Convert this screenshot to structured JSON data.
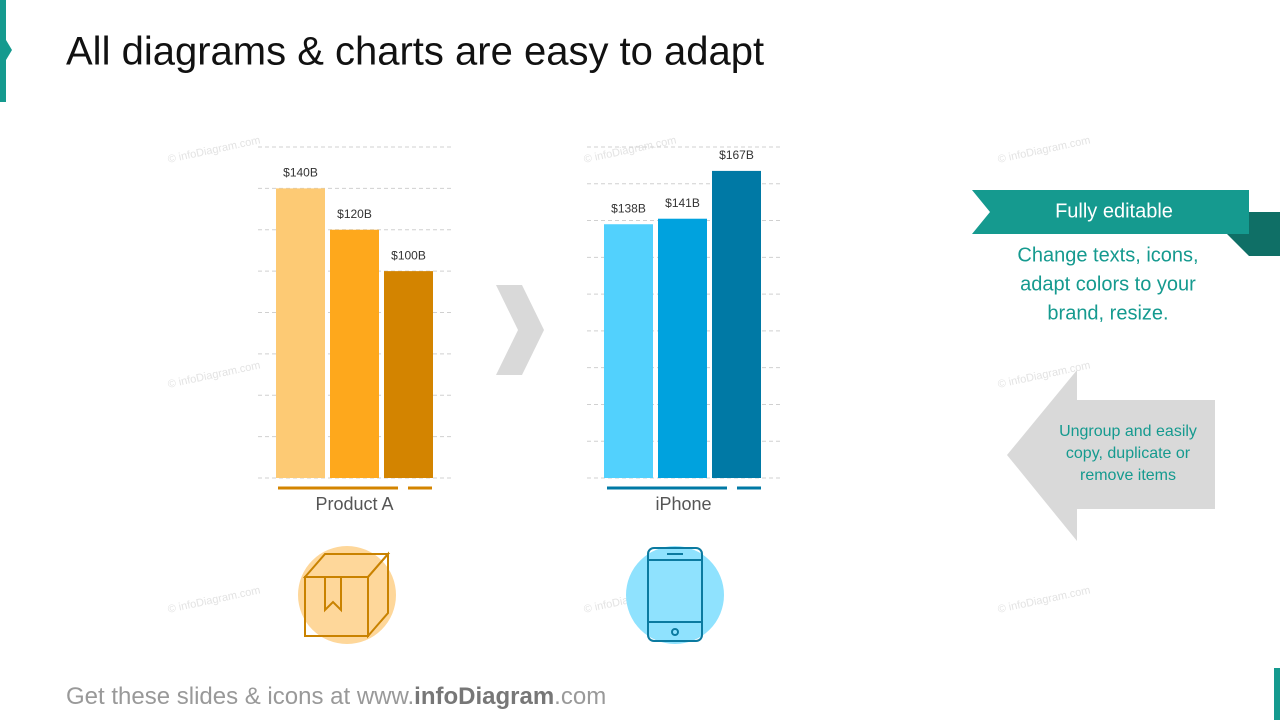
{
  "title": "All diagrams & charts are easy to adapt",
  "watermark": "© infoDiagram.com",
  "chart_data": [
    {
      "type": "bar",
      "x_label": "Product A",
      "categories": [
        null,
        null,
        null
      ],
      "values": [
        140,
        120,
        100
      ],
      "value_labels": [
        "$140B",
        "$120B",
        "$100B"
      ],
      "colors": [
        "#fdca74",
        "#fea81c",
        "#d38400"
      ],
      "ylim": [
        0,
        160
      ],
      "yticks": [
        0,
        20,
        40,
        60,
        80,
        100,
        120,
        140,
        160
      ],
      "grid": true
    },
    {
      "type": "bar",
      "x_label": "iPhone",
      "categories": [
        null,
        null,
        null
      ],
      "values": [
        138,
        141,
        167
      ],
      "value_labels": [
        "$138B",
        "$141B",
        "$167B"
      ],
      "colors": [
        "#52d1fd",
        "#00a2de",
        "#0079a5"
      ],
      "ylim": [
        0,
        180
      ],
      "yticks": [
        0,
        20,
        40,
        60,
        80,
        100,
        120,
        140,
        160,
        180
      ],
      "grid": true
    }
  ],
  "ribbon": "Fully editable",
  "ribbon_text": [
    "Change texts, icons,",
    "adapt colors to your",
    "brand, resize."
  ],
  "arrow_text": [
    "Ungroup and easily",
    "copy, duplicate or",
    "remove items"
  ],
  "footer": [
    "Get these slides & icons at www.",
    "infoDiagram",
    ".com"
  ]
}
